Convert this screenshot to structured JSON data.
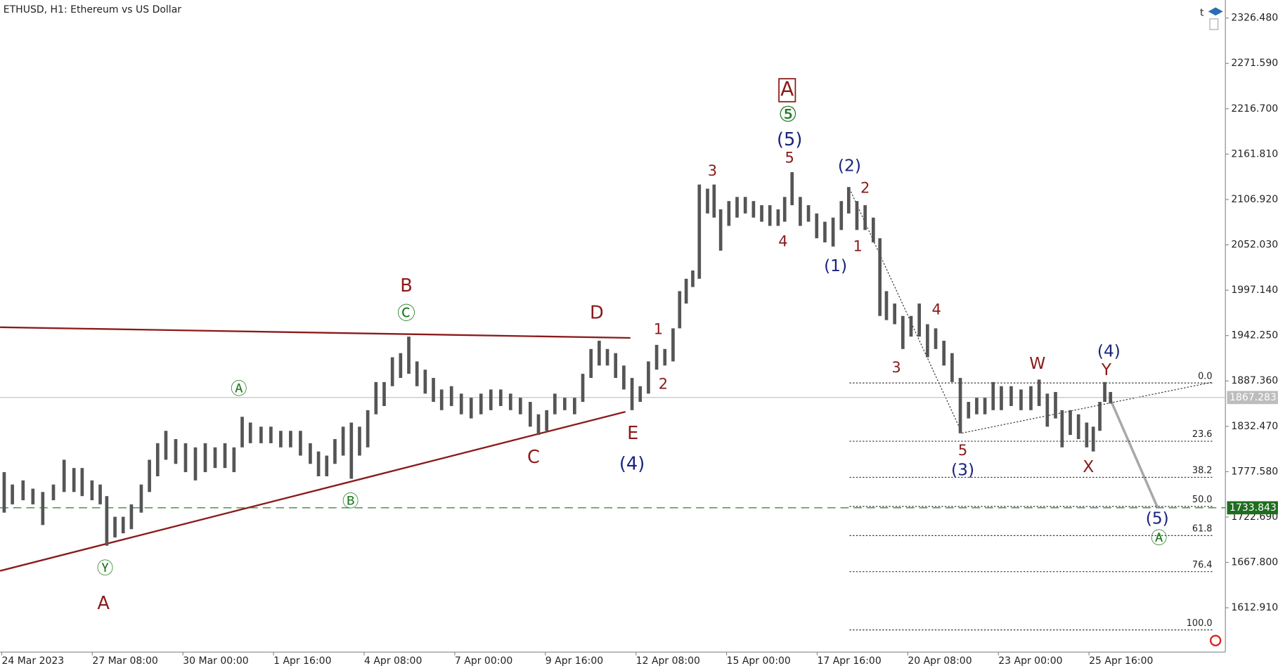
{
  "chart_data": {
    "type": "ohlc",
    "title": "ETHUSD, H1:  Ethereum vs US Dollar",
    "toolbar_label": "t",
    "color": "#555555",
    "x_tick_labels": [
      "24 Mar 2023",
      "27 Mar 08:00",
      "30 Mar 00:00",
      "1 Apr 16:00",
      "4 Apr 08:00",
      "7 Apr 00:00",
      "9 Apr 16:00",
      "12 Apr 08:00",
      "15 Apr 00:00",
      "17 Apr 16:00",
      "20 Apr 08:00",
      "23 Apr 00:00",
      "25 Apr 16:00"
    ],
    "high": [
      1777,
      1762,
      1767,
      1757,
      1753,
      1762,
      1792,
      1782,
      1782,
      1767,
      1762,
      1748,
      1723,
      1723,
      1738,
      1762,
      1792,
      1812,
      1827,
      1817,
      1812,
      1807,
      1812,
      1807,
      1812,
      1807,
      1844,
      1837,
      1832,
      1832,
      1827,
      1827,
      1827,
      1812,
      1802,
      1797,
      1817,
      1832,
      1837,
      1832,
      1852,
      1886,
      1886,
      1916,
      1921,
      1941,
      1911,
      1901,
      1891,
      1877,
      1881,
      1872,
      1867,
      1872,
      1877,
      1877,
      1872,
      1867,
      1862,
      1847,
      1852,
      1872,
      1867,
      1867,
      1896,
      1926,
      1936,
      1926,
      1921,
      1906,
      1891,
      1881,
      1911,
      1931,
      1926,
      1951,
      1996,
      2011,
      2021,
      2125,
      2120,
      2125,
      2095,
      2105,
      2110,
      2110,
      2105,
      2100,
      2100,
      2095,
      2110,
      2140,
      2110,
      2100,
      2090,
      2080,
      2085,
      2105,
      2122,
      2105,
      2100,
      2085,
      2060,
      1996,
      1981,
      1966,
      1966,
      1981,
      1956,
      1951,
      1936,
      1921,
      1891,
      1862,
      1867,
      1867,
      1886,
      1881,
      1881,
      1877,
      1881,
      1889,
      1872,
      1874,
      1852,
      1852,
      1847,
      1837,
      1832,
      1862,
      1886,
      1874
    ],
    "low": [
      1728,
      1738,
      1743,
      1738,
      1713,
      1743,
      1753,
      1753,
      1748,
      1743,
      1738,
      1688,
      1698,
      1703,
      1708,
      1728,
      1753,
      1772,
      1792,
      1787,
      1777,
      1767,
      1777,
      1782,
      1782,
      1777,
      1807,
      1812,
      1812,
      1812,
      1807,
      1807,
      1797,
      1787,
      1772,
      1772,
      1787,
      1797,
      1769,
      1797,
      1807,
      1847,
      1857,
      1881,
      1891,
      1896,
      1881,
      1872,
      1862,
      1852,
      1857,
      1847,
      1842,
      1847,
      1852,
      1857,
      1852,
      1847,
      1832,
      1822,
      1827,
      1847,
      1852,
      1847,
      1862,
      1891,
      1906,
      1906,
      1891,
      1877,
      1852,
      1862,
      1872,
      1901,
      1906,
      1911,
      1951,
      1981,
      2001,
      2011,
      2090,
      2085,
      2045,
      2075,
      2085,
      2090,
      2085,
      2080,
      2075,
      2075,
      2080,
      2100,
      2075,
      2080,
      2060,
      2055,
      2050,
      2070,
      2090,
      2070,
      2070,
      2055,
      1966,
      1961,
      1956,
      1926,
      1941,
      1941,
      1916,
      1926,
      1906,
      1886,
      1824,
      1842,
      1847,
      1847,
      1852,
      1852,
      1857,
      1852,
      1852,
      1857,
      1832,
      1842,
      1807,
      1822,
      1817,
      1807,
      1802,
      1827,
      1862,
      1860
    ],
    "ylim": [
      1559.3,
      2348.3
    ],
    "yticks": [
      {
        "value": 2326.48,
        "label": "2326.480"
      },
      {
        "value": 2271.59,
        "label": "2271.590"
      },
      {
        "value": 2216.7,
        "label": "2216.700"
      },
      {
        "value": 2161.81,
        "label": "2161.810"
      },
      {
        "value": 2106.92,
        "label": "2106.920"
      },
      {
        "value": 2052.03,
        "label": "2052.030"
      },
      {
        "value": 1997.14,
        "label": "1997.140"
      },
      {
        "value": 1942.25,
        "label": "1942.250"
      },
      {
        "value": 1887.36,
        "label": "1887.360"
      },
      {
        "value": 1832.47,
        "label": "1832.470"
      },
      {
        "value": 1777.58,
        "label": "1777.580"
      },
      {
        "value": 1722.69,
        "label": "1722.690"
      },
      {
        "value": 1667.8,
        "label": "1667.800"
      },
      {
        "value": 1612.91,
        "label": "1612.910"
      }
    ],
    "price_lines": [
      {
        "value": 1867.283,
        "color": "#bdbdbd",
        "style": "solid"
      },
      {
        "value": 1733.843,
        "color": "#1e6e1e",
        "style": "dashed"
      }
    ],
    "fibonacci": {
      "start_price": 1884.9,
      "end_price": 1586.1,
      "levels": [
        {
          "value": 0,
          "label": "0.0"
        },
        23.6,
        38.2,
        {
          "value": 50,
          "label": "50.0"
        },
        61.8,
        76.4,
        {
          "value": 100,
          "label": "100.0"
        }
      ]
    },
    "annotations": [
      "B",
      "Ⓒ",
      "D",
      "Ⓐ",
      "Ⓑ",
      "Ⓨ",
      "A",
      "C",
      "E",
      "(4)",
      "1",
      "2",
      "3",
      "4",
      "5",
      "(5)",
      "⑤",
      "A",
      "(2)",
      "2",
      "1",
      "(1)",
      "4",
      "3",
      "5",
      "(3)",
      "W",
      "(4)",
      "Y",
      "X",
      "(5)",
      "Ⓐ"
    ]
  }
}
